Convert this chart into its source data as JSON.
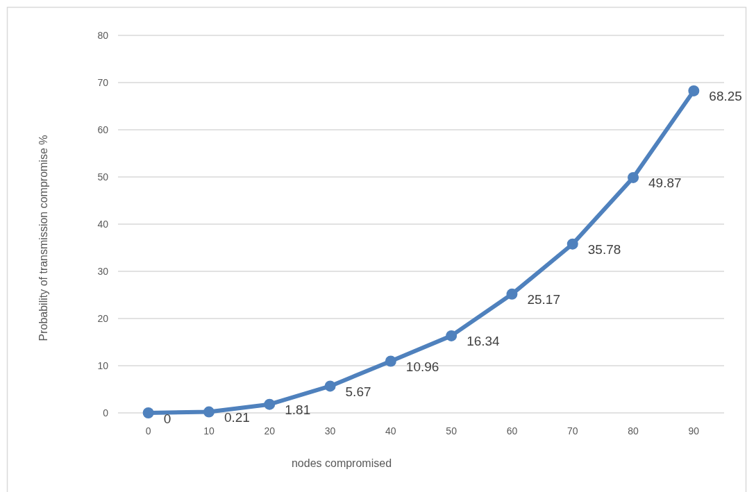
{
  "chart_data": {
    "type": "line",
    "xlabel": "nodes compromised",
    "ylabel": "Probability of transmission compromise %",
    "categories": [
      "0",
      "10",
      "20",
      "30",
      "40",
      "50",
      "60",
      "70",
      "80",
      "90"
    ],
    "series": [
      {
        "color": "#4f81bd",
        "values": [
          0,
          0.21,
          1.81,
          5.67,
          10.96,
          16.34,
          25.17,
          35.78,
          49.87,
          68.25
        ]
      }
    ],
    "ylim": [
      0,
      80
    ],
    "yticks": [
      0,
      10,
      20,
      30,
      40,
      50,
      60,
      70,
      80
    ],
    "grid": "y",
    "marker": "circle",
    "line_style": "solid",
    "data_labels": true
  }
}
